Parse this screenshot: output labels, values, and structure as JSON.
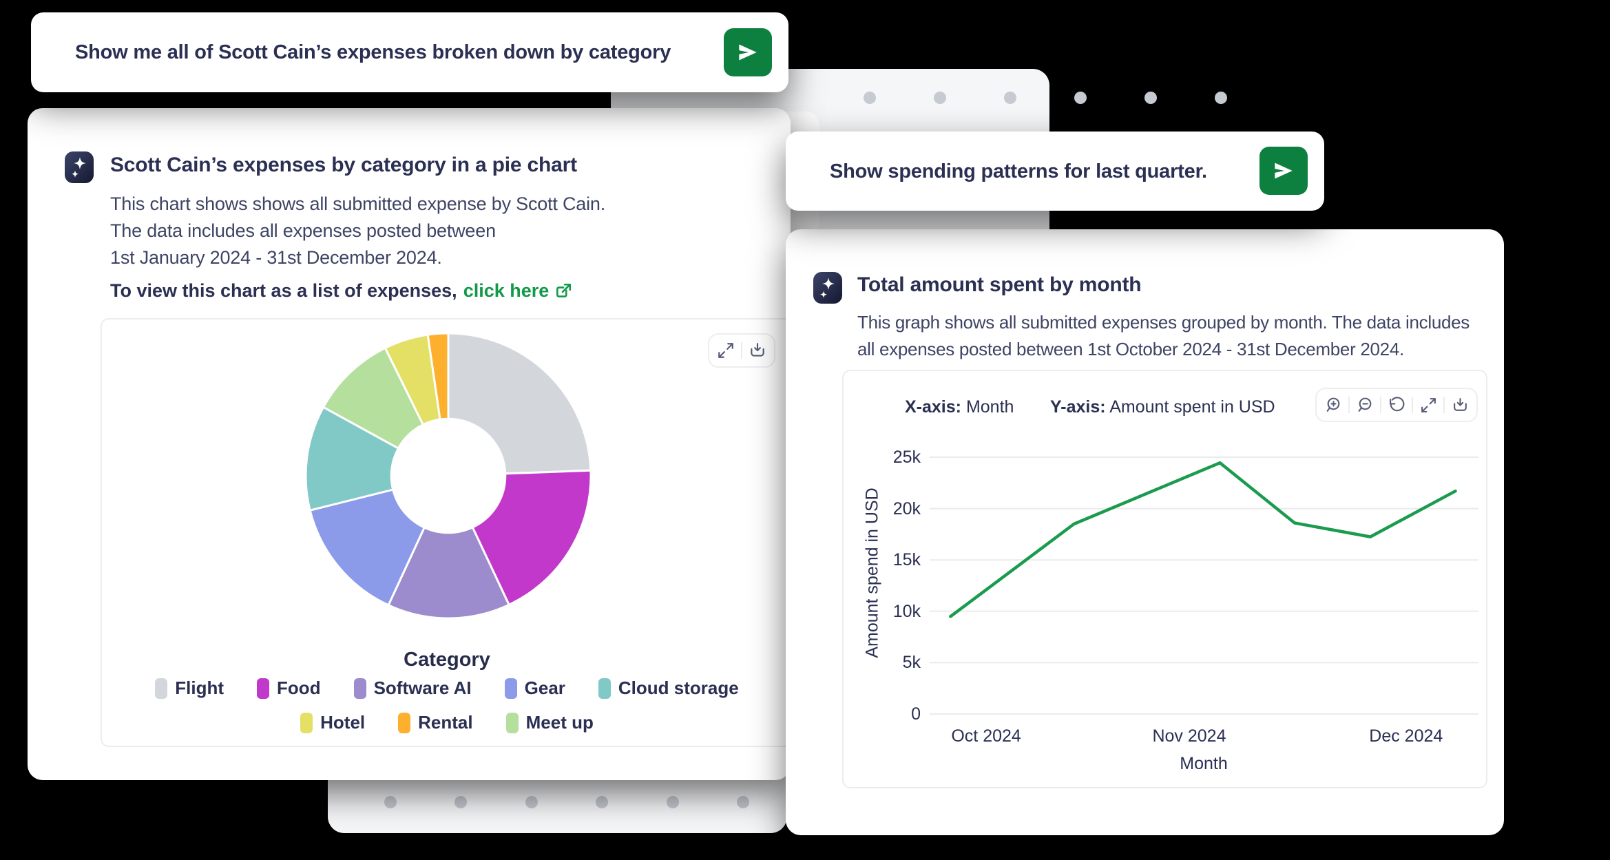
{
  "colors": {
    "background": "#000000",
    "brand_green": "#0d7f3f",
    "link_green": "#13994a",
    "line_green": "#1a9b4e",
    "text_navy": "#2b3053",
    "text_desc": "#3e4464",
    "ghost_card": "#f5f6f8",
    "grid": "#ebebee"
  },
  "query_card_1": {
    "text": "Show me all of Scott Cain’s expenses broken down by category"
  },
  "query_card_2": {
    "text": "Show spending patterns for last quarter."
  },
  "pie_card": {
    "title": "Scott Cain’s expenses by category in a pie chart",
    "description_lines": [
      "This chart shows shows all submitted expense by Scott Cain.",
      "The data includes all expenses posted between",
      "1st January 2024 - 31st December 2024."
    ],
    "cta_prefix": "To view this chart as a list of expenses,",
    "cta_link": "click here"
  },
  "line_card": {
    "title": "Total amount spent by month",
    "description_lines": [
      "This graph shows all submitted expenses grouped by month. The data includes",
      "all expenses posted between 1st October 2024 - 31st December 2024."
    ],
    "axis": {
      "x_key": "X-axis:",
      "x_value": "Month",
      "y_key": "Y-axis:",
      "y_value": "Amount spent in USD"
    }
  },
  "chart_data": [
    {
      "type": "pie",
      "title": "Category",
      "donut_hole_ratio": 0.4,
      "start_angle_deg": 0,
      "segments": [
        {
          "label": "Flight",
          "percent": 24.4,
          "color": "#d3d7dc"
        },
        {
          "label": "Food",
          "percent": 18.6,
          "color": "#c238ca"
        },
        {
          "label": "Software AI",
          "percent": 13.9,
          "color": "#9c8ccd"
        },
        {
          "label": "Gear",
          "percent": 14.2,
          "color": "#8b9ae9"
        },
        {
          "label": "Cloud storage",
          "percent": 11.9,
          "color": "#80c9c6"
        },
        {
          "label": "Meet up",
          "percent": 9.7,
          "color": "#b4df9d"
        },
        {
          "label": "Hotel",
          "percent": 5.0,
          "color": "#e3e065"
        },
        {
          "label": "Rental",
          "percent": 2.3,
          "color": "#fcb02e"
        }
      ],
      "legend_rows": [
        [
          "Flight",
          "Food",
          "Software AI",
          "Gear",
          "Cloud storage"
        ],
        [
          "Hotel",
          "Rental",
          "Meet up"
        ]
      ]
    },
    {
      "type": "line",
      "xlabel": "Month",
      "ylabel": "Amount spend in USD",
      "line_color": "#1a9b4e",
      "ylim": [
        0,
        25000
      ],
      "y_ticks": [
        {
          "label": "25k",
          "value": 25000
        },
        {
          "label": "20k",
          "value": 20000
        },
        {
          "label": "15k",
          "value": 15000
        },
        {
          "label": "10k",
          "value": 10000
        },
        {
          "label": "5k",
          "value": 5000
        },
        {
          "label": "0",
          "value": 0
        }
      ],
      "x_ticks": [
        {
          "label": "Oct 2024",
          "pos": 0.103
        },
        {
          "label": "Nov 2024",
          "pos": 0.473
        },
        {
          "label": "Dec 2024",
          "pos": 0.868
        }
      ],
      "points": [
        {
          "x": 0.038,
          "y": 9500
        },
        {
          "x": 0.263,
          "y": 18500
        },
        {
          "x": 0.529,
          "y": 24450
        },
        {
          "x": 0.665,
          "y": 18600
        },
        {
          "x": 0.803,
          "y": 17250
        },
        {
          "x": 0.958,
          "y": 21700
        }
      ]
    }
  ]
}
